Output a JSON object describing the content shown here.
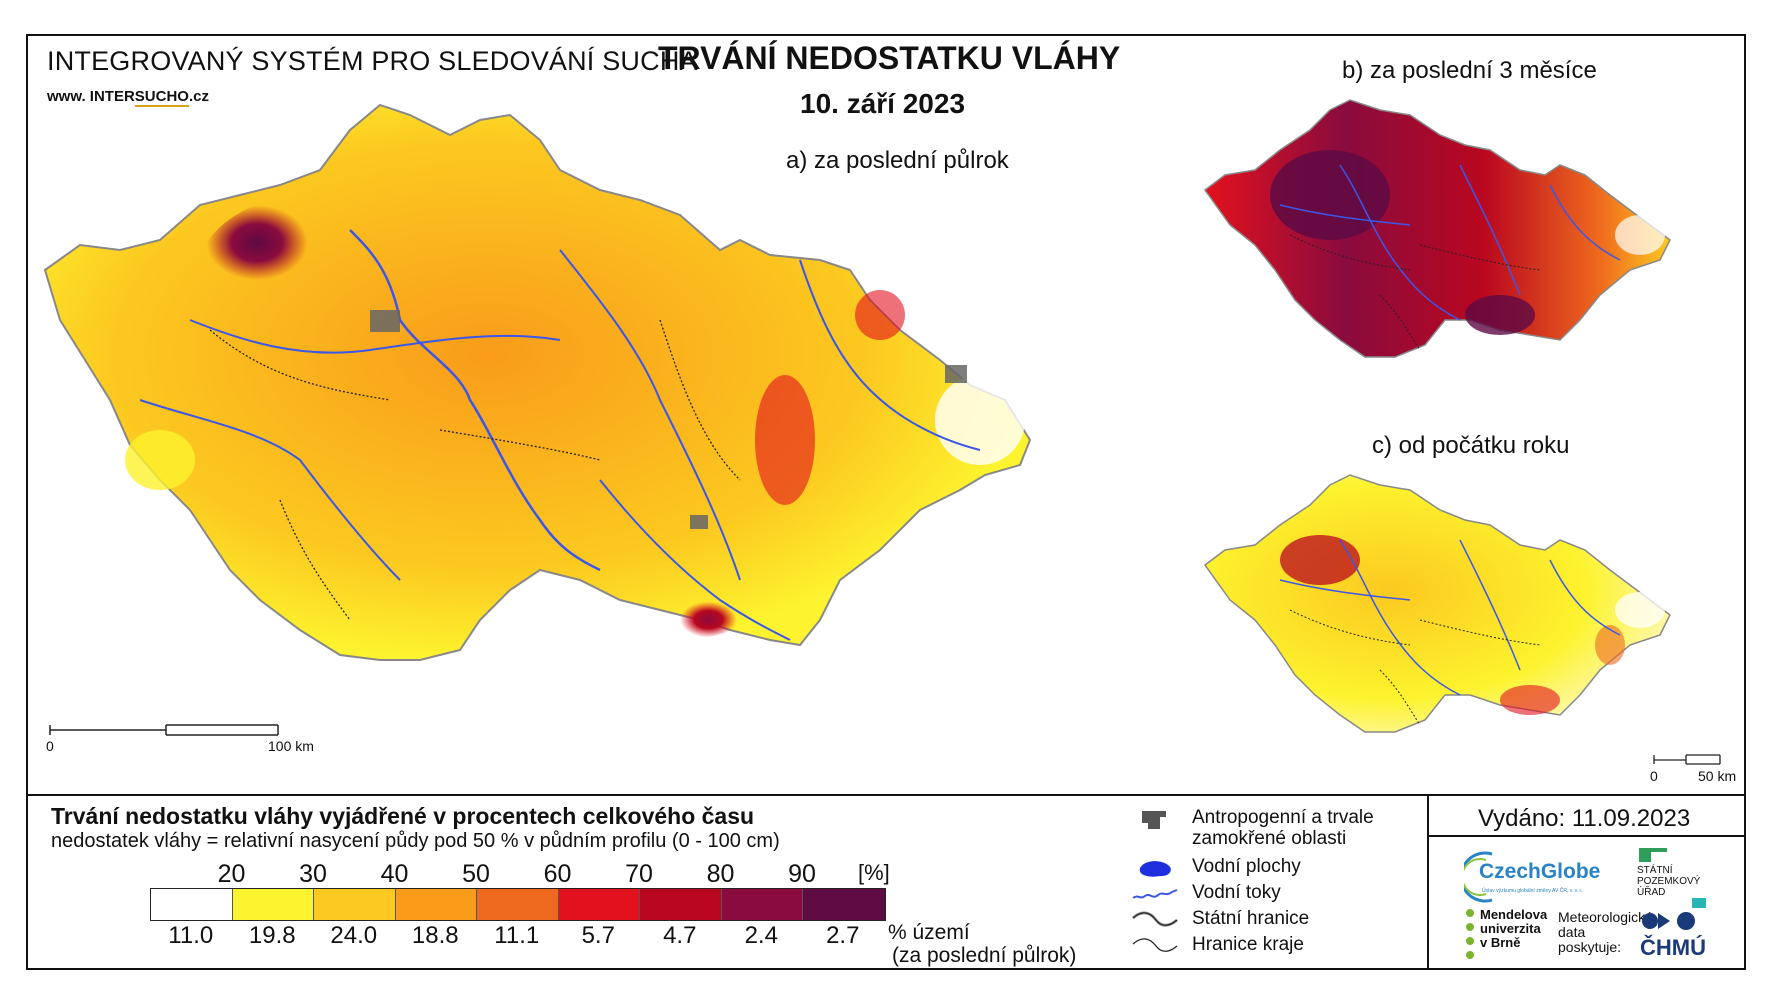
{
  "header": {
    "system_title": "INTEGROVANÝ SYSTÉM PRO SLEDOVÁNÍ SUCHA",
    "url_prefix": "www. INTER",
    "url_brand": "SUCHO",
    "url_suffix": ".cz",
    "main_title": "TRVÁNÍ NEDOSTATKU VLÁHY",
    "date": "10. září 2023"
  },
  "maps": {
    "a_label": "a) za poslední půlrok",
    "b_label": "b) za poslední 3 měsíce",
    "c_label": "c) od počátku roku",
    "scale_main": {
      "start": "0",
      "end": "100 km"
    },
    "scale_small": {
      "start": "0",
      "end": "50 km"
    }
  },
  "legend": {
    "title": "Trvání nedostatku vláhy vyjádřené v procentech celkového času",
    "subtitle": "nedostatek vláhy = relativní nasycení půdy pod 50 % v půdním profilu (0 - 100 cm)",
    "ticks": [
      "20",
      "30",
      "40",
      "50",
      "60",
      "70",
      "80",
      "90"
    ],
    "tick_unit": "[%]",
    "colors": [
      "#ffffff",
      "#fdf32e",
      "#fcc920",
      "#f99c1a",
      "#ef6a1e",
      "#e3111e",
      "#b9071f",
      "#8a0b3e",
      "#5e0a43"
    ],
    "percentages": [
      "11.0",
      "19.8",
      "24.0",
      "18.8",
      "11.1",
      "5.7",
      "4.7",
      "2.4",
      "2.7"
    ],
    "pct_label_1": "% území",
    "pct_label_2": "(za poslední půlrok)"
  },
  "symbols": {
    "anthropogenic_1": "Antropogenní a trvale",
    "anthropogenic_2": "zamokřené oblasti",
    "water_bodies": "Vodní plochy",
    "rivers": "Vodní toky",
    "state_border": "Státní hranice",
    "region_border": "Hranice kraje"
  },
  "footer": {
    "issued": "Vydáno: 11.09.2023",
    "czechglobe": "CzechGlobe",
    "czechglobe_sub": "Ústav výzkumu globální změny AV ČR, v. v. i.",
    "szu_1": "STÁTNÍ",
    "szu_2": "POZEMKOVÝ",
    "szu_3": "ÚŘAD",
    "mendel_1": "Mendelova",
    "mendel_2": "univerzita",
    "mendel_3": "v Brně",
    "meteo_1": "Meteorologická",
    "meteo_2": "data",
    "meteo_3": "poskytuje:",
    "chmu": "ČHMÚ"
  }
}
